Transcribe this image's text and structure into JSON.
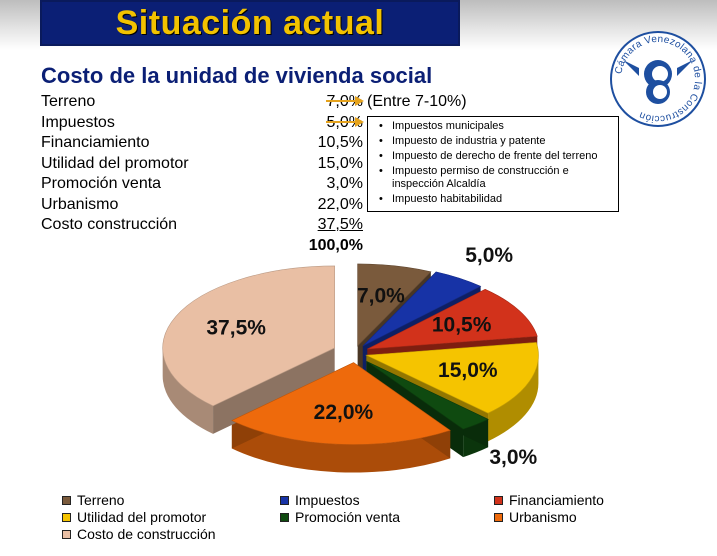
{
  "header": {
    "title": "Situación actual"
  },
  "subtitle": "Costo de la unidad de vivienda social",
  "items": [
    {
      "label": "Terreno",
      "value": "7,0%"
    },
    {
      "label": "Impuestos",
      "value": "5,0%"
    },
    {
      "label": "Financiamiento",
      "value": "10,5%"
    },
    {
      "label": "Utilidad del promotor",
      "value": "15,0%"
    },
    {
      "label": "Promoción venta",
      "value": "3,0%"
    },
    {
      "label": "Urbanismo",
      "value": "22,0%"
    },
    {
      "label": "Costo construcción",
      "value": "37,5%"
    }
  ],
  "total": "100,0%",
  "range_note": "(Entre 7-10%)",
  "tax_items": [
    "Impuestos municipales",
    "Impuesto de industria y patente",
    "Impuesto de derecho de frente del terreno",
    "Impuesto permiso de construcción e inspección Alcaldía",
    "Impuesto habitabilidad"
  ],
  "logo": {
    "text": "Cámara Venezolana de la Construcción",
    "icon": "camara-venezolana-logo"
  },
  "chart_data": {
    "type": "pie",
    "series": [
      {
        "name": "Terreno",
        "value": 7.0,
        "label": "7,0%",
        "color": "#7a5a3c"
      },
      {
        "name": "Impuestos",
        "value": 5.0,
        "label": "5,0%",
        "color": "#1733a6"
      },
      {
        "name": "Financiamiento",
        "value": 10.5,
        "label": "10,5%",
        "color": "#d2321b"
      },
      {
        "name": "Utilidad del promotor",
        "value": 15.0,
        "label": "15,0%",
        "color": "#f5c400"
      },
      {
        "name": "Promoción venta",
        "value": 3.0,
        "label": "3,0%",
        "color": "#0f4a10"
      },
      {
        "name": "Urbanismo",
        "value": 22.0,
        "label": "22,0%",
        "color": "#ee6a0c"
      },
      {
        "name": "Costo de construcción",
        "value": 37.5,
        "label": "37,5%",
        "color": "#e9bfa4"
      }
    ],
    "legend": "bottom",
    "exploded": true,
    "three_d": true
  },
  "colors": {
    "title_bg": "#0b1f75",
    "title_text": "#f2c200",
    "subtitle": "#0b1f75",
    "arrow": "#e5a21b"
  }
}
